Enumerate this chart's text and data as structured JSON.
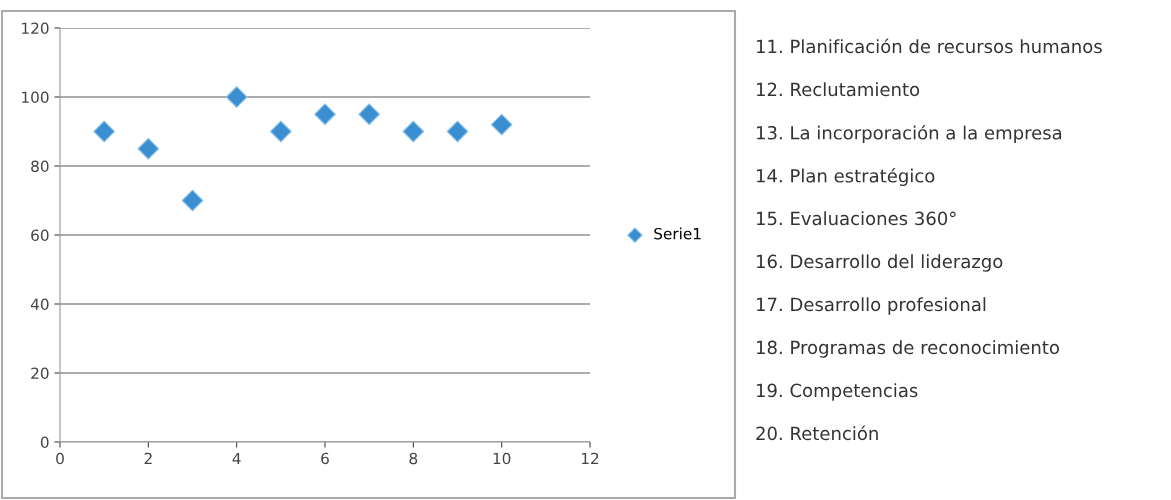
{
  "chart_data": {
    "type": "scatter",
    "x": [
      1,
      2,
      3,
      4,
      5,
      6,
      7,
      8,
      9,
      10
    ],
    "series": [
      {
        "name": "Serie1",
        "color": "#3b8fd0",
        "values": [
          90,
          85,
          70,
          100,
          90,
          95,
          95,
          90,
          90,
          92
        ]
      }
    ],
    "xlim": [
      0,
      12
    ],
    "xticks": [
      0,
      2,
      4,
      6,
      8,
      10,
      12
    ],
    "ylim": [
      0,
      120
    ],
    "yticks": [
      0,
      20,
      40,
      60,
      80,
      100,
      120
    ],
    "grid": "y",
    "legend": "right",
    "marker": "diamond",
    "annotations": [
      "11. Planificación de recursos humanos",
      "12. Reclutamiento",
      "13. La incorporación a la empresa",
      "14. Plan estratégico",
      "15. Evaluaciones 360°",
      "16. Desarrollo del liderazgo",
      "17. Desarrollo profesional",
      "18. Programas de reconocimiento",
      "19. Competencias",
      "20. Retención"
    ]
  }
}
